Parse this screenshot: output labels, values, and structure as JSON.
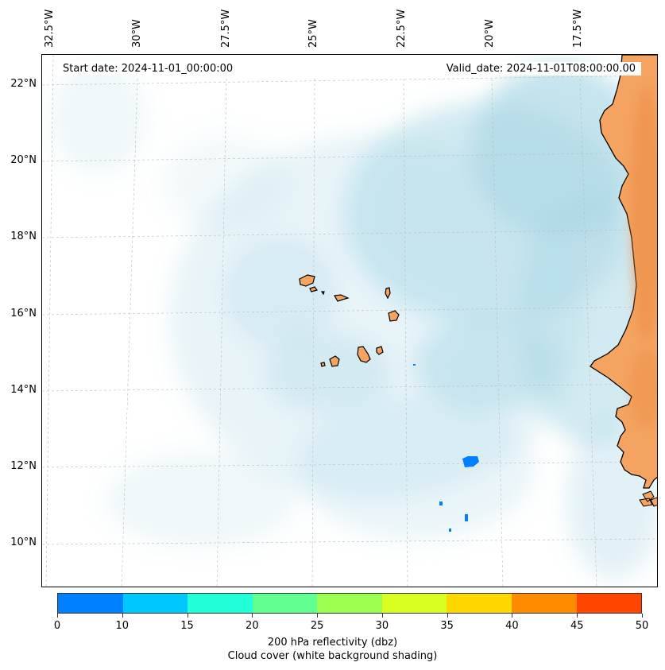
{
  "map": {
    "start_date": "Start date: 2024-11-01_00:00:00",
    "valid_date": "Valid_date: 2024-11-01T08:00:00.00",
    "longitude_labels": [
      "32.5°W",
      "30°W",
      "27.5°W",
      "25°W",
      "22.5°W",
      "20°W",
      "17.5°W"
    ],
    "latitude_labels": [
      "22°N",
      "20°N",
      "18°N",
      "16°N",
      "14°N",
      "12°N",
      "10°N"
    ],
    "land_color": "#f4a460",
    "cloud_color": "#add8e6",
    "reflectivity_echo_color": "#007fff"
  },
  "colorbar": {
    "ticks": [
      "0",
      "10",
      "15",
      "20",
      "25",
      "30",
      "35",
      "40",
      "45",
      "50"
    ],
    "colors": [
      "#007fff",
      "#00c8ff",
      "#20ffd8",
      "#60ff90",
      "#9cff50",
      "#d8ff20",
      "#ffd700",
      "#ff8c00",
      "#ff4500"
    ],
    "label_line1": "200 hPa reflectivity (dbz)",
    "label_line2": "Cloud cover (white background shading)"
  }
}
